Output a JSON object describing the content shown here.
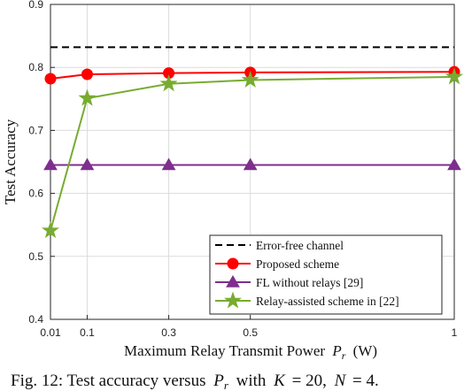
{
  "chart_data": {
    "type": "line",
    "xlabel": "Maximum Relay Transmit Power",
    "xlabel_symbol": "P",
    "xlabel_subscript": "r",
    "xlabel_unit": "(W)",
    "ylabel": "Test Accuracy",
    "x": [
      0.01,
      0.1,
      0.3,
      0.5,
      1
    ],
    "x_ticks": [
      "0.01",
      "0.1",
      "0.3",
      "0.5",
      "1"
    ],
    "y_ticks": [
      "0.4",
      "0.5",
      "0.6",
      "0.7",
      "0.8",
      "0.9"
    ],
    "xlim": [
      0.01,
      1
    ],
    "ylim": [
      0.4,
      0.9
    ],
    "grid": true,
    "legend_position": "bottom-right",
    "series": [
      {
        "name": "Error-free channel",
        "values": [
          0.832,
          0.832,
          0.832,
          0.832,
          0.832
        ],
        "color": "#000000",
        "style": "dashed",
        "marker": "none"
      },
      {
        "name": "Proposed scheme",
        "values": [
          0.782,
          0.789,
          0.791,
          0.792,
          0.793
        ],
        "color": "#ff0000",
        "style": "solid",
        "marker": "circle"
      },
      {
        "name": "FL without relays [29]",
        "values": [
          0.645,
          0.645,
          0.645,
          0.645,
          0.645
        ],
        "color": "#7e2f8e",
        "style": "solid",
        "marker": "triangle"
      },
      {
        "name": "Relay-assisted scheme in [22]",
        "values": [
          0.541,
          0.751,
          0.774,
          0.78,
          0.785
        ],
        "color": "#77ac30",
        "style": "solid",
        "marker": "star"
      }
    ]
  },
  "caption": {
    "text": "Fig. 12: Test accuracy versus",
    "p": "P",
    "p_sub": "r",
    "with": "with",
    "k": "K",
    "k_val": "= 20,",
    "n": "N",
    "n_val": "= 4."
  }
}
